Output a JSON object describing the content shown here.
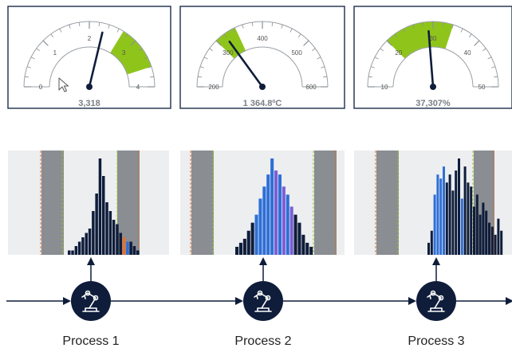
{
  "gauges": [
    {
      "readout": "3,318",
      "ticks": [
        "0",
        "1",
        "2",
        "3",
        "4"
      ],
      "min": 0,
      "max": 4,
      "band": [
        2.7,
        3.6
      ],
      "needle": 2.3,
      "cursor": true
    },
    {
      "readout": "1 364.8ºC",
      "ticks": [
        "200",
        "300",
        "400",
        "500",
        "600"
      ],
      "min": 200,
      "max": 600,
      "band": [
        300,
        345
      ],
      "needle": 320,
      "cursor": false
    },
    {
      "readout": "37,307%",
      "ticks": [
        "10",
        "20",
        "30",
        "40",
        "50"
      ],
      "min": 10,
      "max": 50,
      "band": [
        20,
        34
      ],
      "needle": 29,
      "cursor": false
    }
  ],
  "histograms": [
    {
      "bars": [
        1,
        1,
        2,
        3,
        4,
        5,
        6,
        10,
        14,
        22,
        18,
        12,
        10,
        8,
        7,
        5,
        4,
        3,
        3,
        2,
        1
      ],
      "colors": [
        "#0f1d3b",
        "#0f1d3b",
        "#0f1d3b",
        "#0f1d3b",
        "#0f1d3b",
        "#0f1d3b",
        "#0f1d3b",
        "#0f1d3b",
        "#0f1d3b",
        "#0f1d3b",
        "#0f1d3b",
        "#0f1d3b",
        "#0f1d3b",
        "#0f1d3b",
        "#0f1d3b",
        "#0f1d3b",
        "#e9702a",
        "#2f6fd6",
        "#0f1d3b",
        "#0f1d3b",
        "#0f1d3b"
      ]
    },
    {
      "bars": [
        2,
        3,
        4,
        6,
        8,
        10,
        14,
        17,
        20,
        24,
        21,
        20,
        17,
        15,
        12,
        10,
        8,
        5,
        3,
        2
      ],
      "colors": [
        "#0f1d3b",
        "#0f1d3b",
        "#0f1d3b",
        "#0f1d3b",
        "#0f1d3b",
        "#2f6fd6",
        "#2f6fd6",
        "#2f6fd6",
        "#2f6fd6",
        "#2f6fd6",
        "#7b5fd4",
        "#2f6fd6",
        "#7b5fd4",
        "#2f6fd6",
        "#7b5fd4",
        "#0f1d3b",
        "#0f1d3b",
        "#0f1d3b",
        "#0f1d3b",
        "#0f1d3b"
      ]
    },
    {
      "bars": [
        3,
        6,
        15,
        20,
        19,
        22,
        18,
        20,
        16,
        21,
        24,
        14,
        22,
        18,
        17,
        12,
        15,
        10,
        13,
        11,
        8,
        7,
        5,
        9,
        6
      ],
      "colors": [
        "#0f1d3b",
        "#0f1d3b",
        "#2f6fd6",
        "#2f6fd6",
        "#2f6fd6",
        "#2f6fd6",
        "#0f1d3b",
        "#0f1d3b",
        "#0f1d3b",
        "#0f1d3b",
        "#0f1d3b",
        "#2f6fd6",
        "#0f1d3b",
        "#0f1d3b",
        "#0f1d3b",
        "#0f1d3b",
        "#0f1d3b",
        "#0f1d3b",
        "#0f1d3b",
        "#0f1d3b",
        "#0f1d3b",
        "#0f1d3b",
        "#0f1d3b",
        "#0f1d3b",
        "#0f1d3b"
      ]
    }
  ],
  "processes": [
    {
      "label": "Process 1",
      "icon": "robot-arm-icon"
    },
    {
      "label": "Process 2",
      "icon": "robot-arm-icon"
    },
    {
      "label": "Process 3",
      "icon": "robot-arm-icon"
    }
  ],
  "colors": {
    "navy": "#0f1d3b",
    "band": "#8fc51b",
    "gauge_border": "#2b3a57",
    "panel_bg": "#eceef0",
    "reject_zone": "#8a8d92",
    "spec_lower": "#e0702a",
    "spec_upper": "#9bc42a"
  }
}
